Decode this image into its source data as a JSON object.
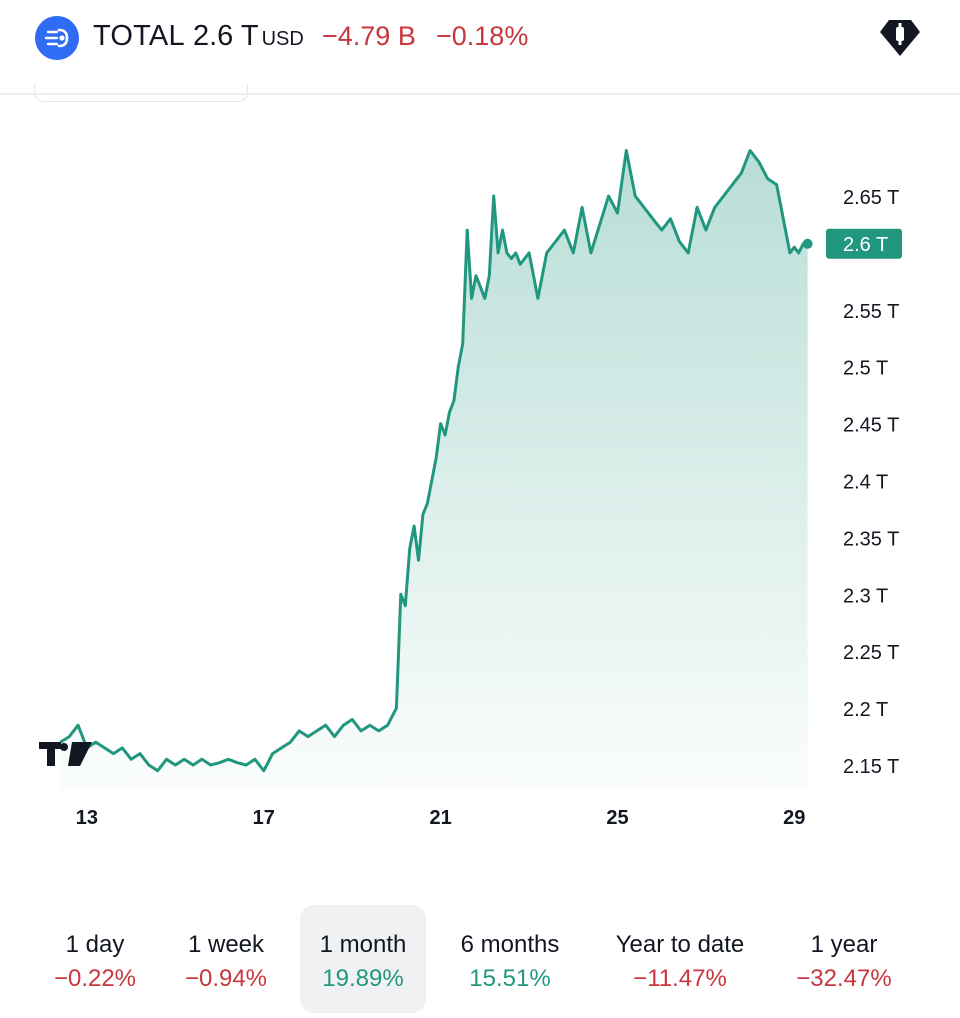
{
  "header": {
    "symbol": "TOTAL",
    "price": "2.6 T",
    "unit": "USD",
    "change_abs": "−4.79 B",
    "change_pct": "−0.18%",
    "logo_icon": "coin-stack-icon",
    "alert_icon": "price-alert-icon",
    "colors": {
      "accent": "#2f6cf3",
      "negative": "#c8363e",
      "positive": "#22977f"
    }
  },
  "chart_data": {
    "type": "area",
    "title": "",
    "xlabel": "",
    "ylabel": "",
    "x_tick_labels": [
      "13",
      "17",
      "21",
      "25",
      "29"
    ],
    "x_ticks": [
      13,
      17,
      21,
      25,
      29
    ],
    "y_tick_labels": [
      "2.65 T",
      "2.6 T",
      "2.55 T",
      "2.5 T",
      "2.45 T",
      "2.4 T",
      "2.35 T",
      "2.3 T",
      "2.25 T",
      "2.2 T",
      "2.15 T"
    ],
    "y_ticks": [
      2.65,
      2.6,
      2.55,
      2.5,
      2.45,
      2.4,
      2.35,
      2.3,
      2.25,
      2.2,
      2.15
    ],
    "current_value_label": "2.6 T",
    "current_value": 2.608,
    "ylim": [
      2.15,
      2.65
    ],
    "xlim": [
      12.3,
      29.4
    ],
    "line_color": "#22977f",
    "grid": false,
    "watermark": "TV",
    "series": [
      {
        "x": [
          12.4,
          12.6,
          12.8,
          13.0,
          13.2,
          13.4,
          13.6,
          13.8,
          14.0,
          14.2,
          14.4,
          14.6,
          14.8,
          15.0,
          15.2,
          15.4,
          15.6,
          15.8,
          16.0,
          16.2,
          16.4,
          16.6,
          16.8,
          17.0,
          17.2,
          17.4,
          17.6,
          17.8,
          18.0,
          18.2,
          18.4,
          18.6,
          18.8,
          19.0,
          19.2,
          19.4,
          19.6,
          19.8,
          20.0,
          20.1,
          20.2,
          20.3,
          20.4,
          20.5,
          20.6,
          20.7,
          20.8,
          20.9,
          21.0,
          21.1,
          21.2,
          21.3,
          21.4,
          21.5,
          21.6,
          21.7,
          21.8,
          21.9,
          22.0,
          22.1,
          22.2,
          22.3,
          22.4,
          22.5,
          22.6,
          22.7,
          22.8,
          23.0,
          23.2,
          23.4,
          23.6,
          23.8,
          24.0,
          24.2,
          24.4,
          24.6,
          24.8,
          25.0,
          25.2,
          25.4,
          25.6,
          25.8,
          26.0,
          26.2,
          26.4,
          26.6,
          26.8,
          27.0,
          27.2,
          27.4,
          27.6,
          27.8,
          28.0,
          28.2,
          28.4,
          28.6,
          28.8,
          28.9,
          29.0,
          29.1,
          29.2,
          29.3
        ],
        "values": [
          2.17,
          2.175,
          2.185,
          2.165,
          2.17,
          2.165,
          2.16,
          2.165,
          2.155,
          2.16,
          2.15,
          2.145,
          2.155,
          2.15,
          2.155,
          2.15,
          2.155,
          2.15,
          2.152,
          2.155,
          2.152,
          2.15,
          2.155,
          2.145,
          2.16,
          2.165,
          2.17,
          2.18,
          2.175,
          2.18,
          2.185,
          2.175,
          2.185,
          2.19,
          2.18,
          2.185,
          2.18,
          2.185,
          2.2,
          2.3,
          2.29,
          2.34,
          2.36,
          2.33,
          2.37,
          2.38,
          2.4,
          2.42,
          2.45,
          2.44,
          2.46,
          2.47,
          2.5,
          2.52,
          2.62,
          2.56,
          2.58,
          2.57,
          2.56,
          2.58,
          2.65,
          2.6,
          2.62,
          2.6,
          2.595,
          2.6,
          2.59,
          2.6,
          2.56,
          2.6,
          2.61,
          2.62,
          2.6,
          2.64,
          2.6,
          2.625,
          2.65,
          2.635,
          2.69,
          2.65,
          2.64,
          2.63,
          2.62,
          2.63,
          2.61,
          2.6,
          2.64,
          2.62,
          2.64,
          2.65,
          2.66,
          2.67,
          2.69,
          2.68,
          2.665,
          2.66,
          2.62,
          2.6,
          2.605,
          2.6,
          2.608,
          2.608
        ]
      }
    ]
  },
  "ranges": [
    {
      "label": "1 day",
      "value": "−0.22%",
      "sign": "neg",
      "active": false
    },
    {
      "label": "1 week",
      "value": "−0.94%",
      "sign": "neg",
      "active": false
    },
    {
      "label": "1 month",
      "value": "19.89%",
      "sign": "pos",
      "active": true
    },
    {
      "label": "6 months",
      "value": "15.51%",
      "sign": "pos",
      "active": false
    },
    {
      "label": "Year to date",
      "value": "−11.47%",
      "sign": "neg",
      "active": false
    },
    {
      "label": "1 year",
      "value": "−32.47%",
      "sign": "neg",
      "active": false
    }
  ]
}
